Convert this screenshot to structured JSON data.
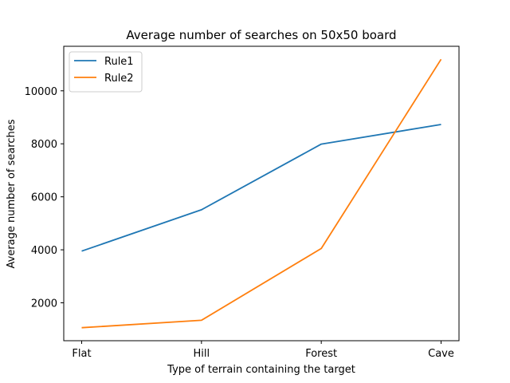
{
  "chart_data": {
    "type": "line",
    "title": "Average number of searches on 50x50 board",
    "xlabel": "Type of terrain containing the target",
    "ylabel": "Average number of searches",
    "categories": [
      "Flat",
      "Hill",
      "Forest",
      "Cave"
    ],
    "series": [
      {
        "name": "Rule1",
        "color": "#1f77b4",
        "values": [
          3950,
          5510,
          7990,
          8730
        ]
      },
      {
        "name": "Rule2",
        "color": "#ff7f0e",
        "values": [
          1060,
          1340,
          4050,
          11190
        ]
      }
    ],
    "ylim": [
      570,
      11680
    ],
    "yticks": [
      2000,
      4000,
      6000,
      8000,
      10000
    ],
    "ytick_labels": [
      "2000",
      "4000",
      "6000",
      "8000",
      "10000"
    ],
    "grid": false,
    "legend_position": "top-left"
  }
}
